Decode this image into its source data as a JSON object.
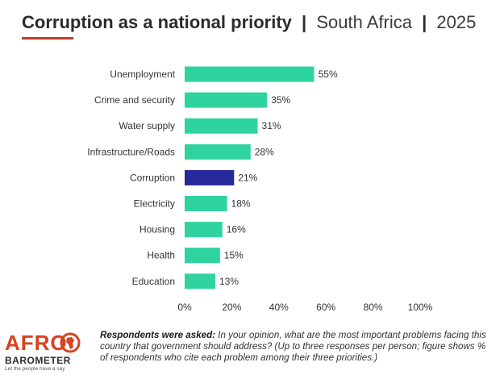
{
  "header": {
    "title": "Corruption as a national priority",
    "separator": "|",
    "country": "South Africa",
    "year": "2025",
    "accent_color": "#c0392b"
  },
  "chart_data": {
    "type": "bar",
    "orientation": "horizontal",
    "categories": [
      "Unemployment",
      "Crime and security",
      "Water supply",
      "Infrastructure/Roads",
      "Corruption",
      "Electricity",
      "Housing",
      "Health",
      "Education"
    ],
    "values": [
      55,
      35,
      31,
      28,
      21,
      18,
      16,
      15,
      13
    ],
    "value_labels": [
      "55%",
      "35%",
      "31%",
      "28%",
      "21%",
      "18%",
      "16%",
      "15%",
      "13%"
    ],
    "highlight_category": "Corruption",
    "colors": {
      "default": "#2ed3a0",
      "highlight": "#27289a"
    },
    "xlim": [
      0,
      100
    ],
    "xticks": [
      0,
      20,
      40,
      60,
      80,
      100
    ],
    "xtick_labels": [
      "0%",
      "20%",
      "40%",
      "60%",
      "80%",
      "100%"
    ],
    "grid": false,
    "legend": "none"
  },
  "footer": {
    "logo_top": "AFRO",
    "logo_bottom": "BAROMETER",
    "logo_tagline": "Let the people have a say",
    "note_lead": "Respondents were asked:",
    "note_text": " In your opinion, what are the most important problems facing this country that government should address? (Up to three responses per person; figure shows % of respondents who cite each problem among their three priorities.)"
  }
}
